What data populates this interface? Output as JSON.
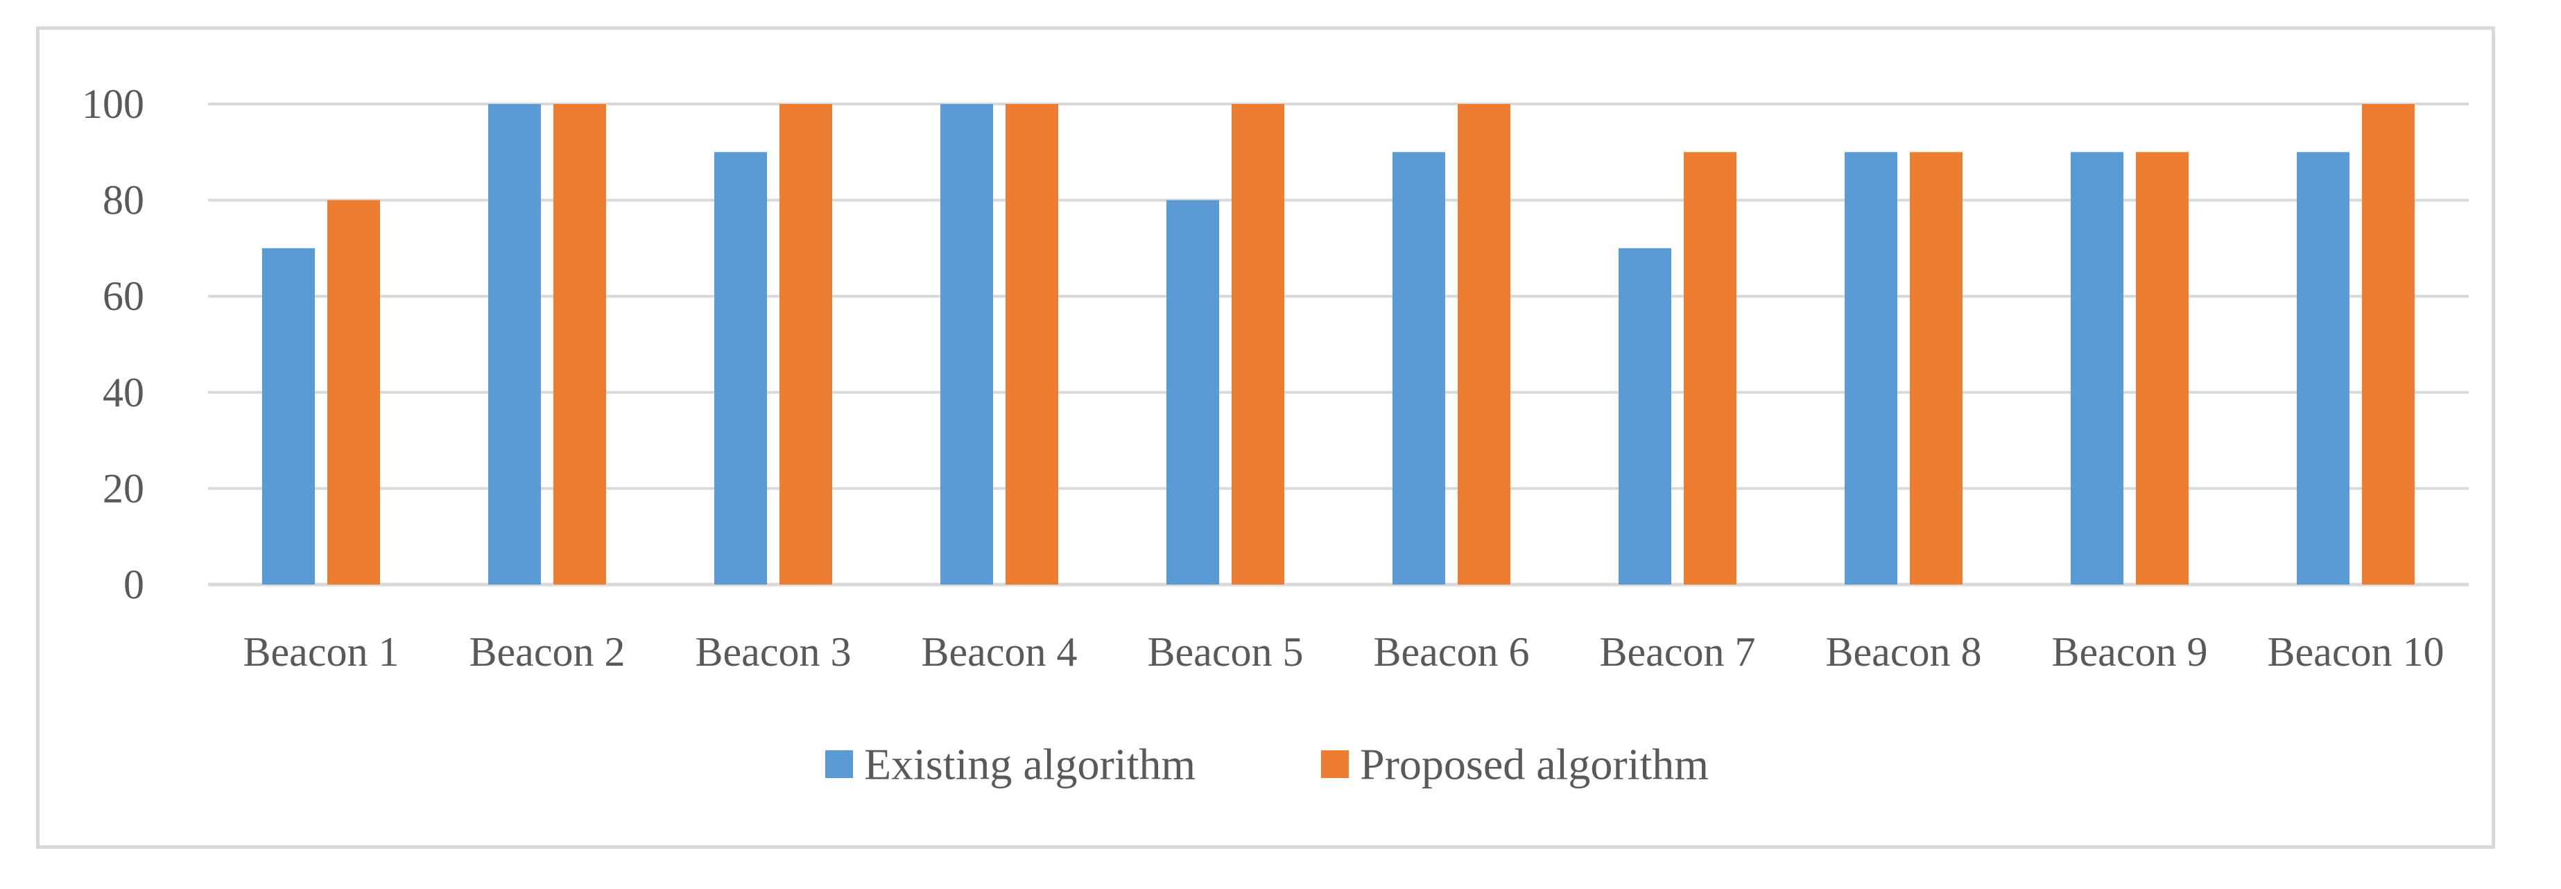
{
  "chart_data": {
    "type": "bar",
    "title": "",
    "xlabel": "",
    "ylabel": "",
    "categories": [
      "Beacon 1",
      "Beacon 2",
      "Beacon 3",
      "Beacon 4",
      "Beacon 5",
      "Beacon 6",
      "Beacon 7",
      "Beacon 8",
      "Beacon 9",
      "Beacon 10"
    ],
    "series": [
      {
        "name": "Existing algorithm",
        "color": "#5b9bd5",
        "values": [
          70,
          100,
          90,
          100,
          80,
          90,
          70,
          90,
          90,
          90
        ]
      },
      {
        "name": "Proposed algorithm",
        "color": "#ed7d31",
        "values": [
          80,
          100,
          100,
          100,
          100,
          100,
          90,
          90,
          90,
          100
        ]
      }
    ],
    "ylim": [
      0,
      100
    ],
    "yticks": [
      0,
      20,
      40,
      60,
      80,
      100
    ],
    "grid": true,
    "gridColor": "#d9d9d9",
    "legend_position": "bottom"
  }
}
